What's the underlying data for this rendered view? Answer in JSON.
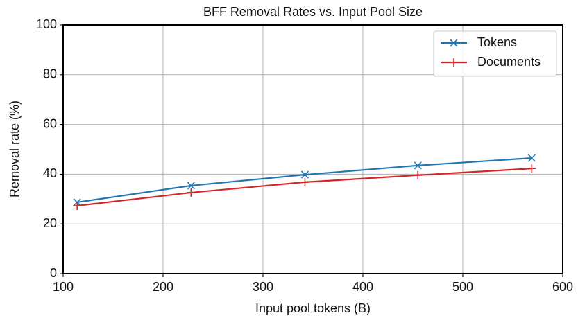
{
  "chart_data": {
    "type": "line",
    "title": "BFF Removal Rates vs. Input Pool Size",
    "xlabel": "Input pool tokens (B)",
    "ylabel": "Removal rate (%)",
    "x": [
      114,
      228,
      342,
      455,
      569
    ],
    "series": [
      {
        "name": "Tokens",
        "color": "#1f77b4",
        "marker": "x",
        "values": [
          28.7,
          35.4,
          39.8,
          43.5,
          46.5
        ]
      },
      {
        "name": "Documents",
        "color": "#d62728",
        "marker": "+",
        "values": [
          27.3,
          32.6,
          36.8,
          39.6,
          42.3
        ]
      }
    ],
    "xlim": [
      100,
      600
    ],
    "xticks": [
      100,
      200,
      300,
      400,
      500,
      600
    ],
    "ylim": [
      0,
      100
    ],
    "yticks": [
      0,
      20,
      40,
      60,
      80,
      100
    ],
    "grid": true,
    "legend": "upper right"
  }
}
